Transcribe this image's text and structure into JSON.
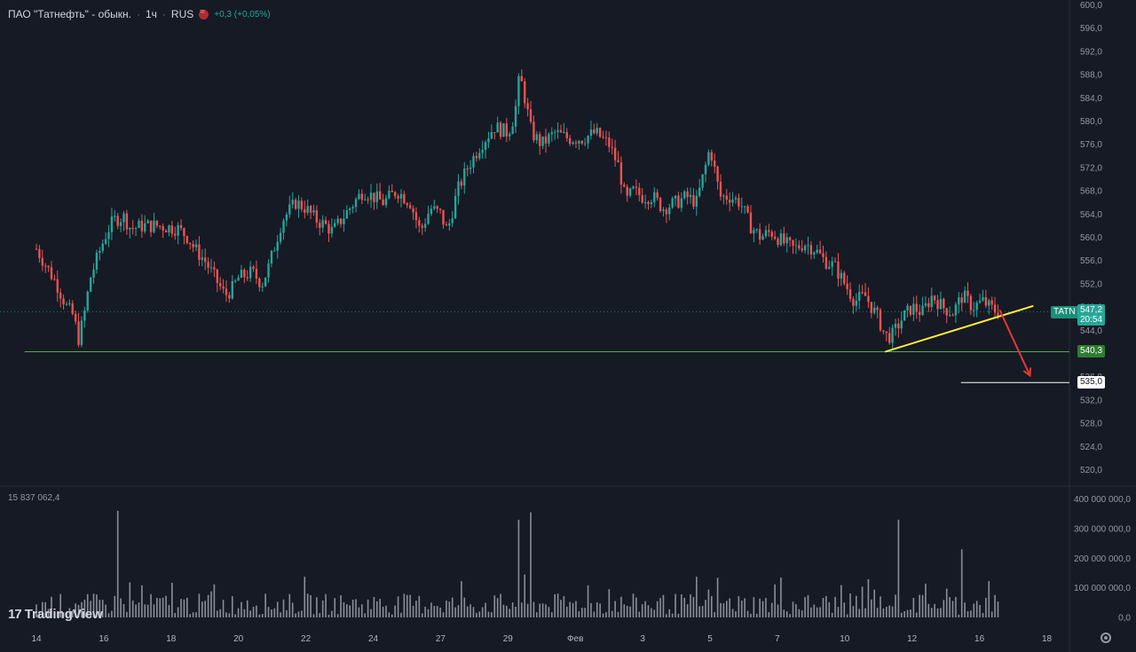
{
  "header": {
    "title": "ПАО \"Татнефть\" - обыкн.",
    "interval": "1ч",
    "exchange": "RUS",
    "change": "+0,3 (+0,05%)"
  },
  "volume_label": "15 837 062,4",
  "logo_text": "TradingView",
  "colors": {
    "background": "#161a25",
    "up": "#26a69a",
    "down": "#ef5350",
    "volume_bar": "#b2b5be",
    "support_line": "#4caf50",
    "trend_line": "#ffeb3b",
    "arrow": "#e53935",
    "target_line": "#ffffff"
  },
  "tags": {
    "ticker": "TATN",
    "last_price": "547,2",
    "countdown": "20:54",
    "support": "540,3",
    "target": "535,0"
  },
  "chart_data": [
    {
      "type": "candlestick",
      "price_axis": {
        "ylim": [
          516,
          600
        ],
        "ticks": [
          "600,0",
          "596,0",
          "592,0",
          "588,0",
          "584,0",
          "580,0",
          "576,0",
          "572,0",
          "568,0",
          "564,0",
          "560,0",
          "556,0",
          "552,0",
          "548,0",
          "544,0",
          "536,0",
          "532,0",
          "528,0",
          "524,0",
          "520,0"
        ],
        "tick_values": [
          600,
          596,
          592,
          588,
          584,
          580,
          576,
          572,
          568,
          564,
          560,
          556,
          552,
          548,
          544,
          536,
          532,
          528,
          524,
          520
        ]
      },
      "x_ticks": [
        "14",
        "16",
        "18",
        "20",
        "22",
        "24",
        "27",
        "29",
        "Фев",
        "3",
        "5",
        "7",
        "10",
        "12",
        "16",
        "18"
      ],
      "x_tick_index": [
        0,
        2,
        4,
        6,
        8,
        10,
        12,
        14,
        16,
        18,
        20,
        22,
        24,
        26,
        28,
        30
      ],
      "price_path": [
        [
          0,
          558
        ],
        [
          0.3,
          555
        ],
        [
          0.6,
          552
        ],
        [
          0.9,
          548
        ],
        [
          1.1,
          546.5
        ],
        [
          1.25,
          542.5
        ],
        [
          1.4,
          546
        ],
        [
          1.6,
          553
        ],
        [
          1.9,
          558
        ],
        [
          2.1,
          561
        ],
        [
          2.3,
          563
        ],
        [
          2.6,
          563.5
        ],
        [
          2.8,
          561.5
        ],
        [
          3.2,
          562
        ],
        [
          3.6,
          562
        ],
        [
          4.2,
          561.5
        ],
        [
          4.5,
          560
        ],
        [
          4.7,
          558
        ],
        [
          5.0,
          556
        ],
        [
          5.3,
          553
        ],
        [
          5.6,
          550
        ],
        [
          5.8,
          551
        ],
        [
          6.0,
          553
        ],
        [
          6.4,
          554
        ],
        [
          6.7,
          552
        ],
        [
          6.9,
          555
        ],
        [
          7.3,
          563
        ],
        [
          7.7,
          566
        ],
        [
          8.0,
          565
        ],
        [
          8.3,
          563
        ],
        [
          8.6,
          562
        ],
        [
          8.8,
          561
        ],
        [
          9.3,
          565
        ],
        [
          9.7,
          568
        ],
        [
          10.0,
          567
        ],
        [
          10.3,
          566
        ],
        [
          10.7,
          568
        ],
        [
          11.1,
          566
        ],
        [
          11.4,
          561
        ],
        [
          11.7,
          565
        ],
        [
          12.0,
          564
        ],
        [
          12.2,
          561
        ],
        [
          12.5,
          568
        ],
        [
          12.8,
          572
        ],
        [
          13.2,
          576
        ],
        [
          13.6,
          579
        ],
        [
          14.0,
          578
        ],
        [
          14.2,
          581
        ],
        [
          14.35,
          588
        ],
        [
          14.5,
          584
        ],
        [
          14.7,
          578
        ],
        [
          15.0,
          576
        ],
        [
          15.4,
          578
        ],
        [
          15.8,
          577
        ],
        [
          16.2,
          577
        ],
        [
          16.6,
          578
        ],
        [
          17.0,
          576
        ],
        [
          17.3,
          572
        ],
        [
          17.5,
          566
        ],
        [
          17.7,
          568
        ],
        [
          18.0,
          567
        ],
        [
          18.3,
          567
        ],
        [
          18.6,
          565
        ],
        [
          19.0,
          566
        ],
        [
          19.3,
          567
        ],
        [
          19.6,
          566
        ],
        [
          19.9,
          573
        ],
        [
          20.0,
          575.5
        ],
        [
          20.3,
          567
        ],
        [
          20.6,
          567
        ],
        [
          20.9,
          566
        ],
        [
          21.2,
          562
        ],
        [
          21.5,
          560
        ],
        [
          21.8,
          561
        ],
        [
          22.2,
          559
        ],
        [
          22.5,
          558
        ],
        [
          22.8,
          559
        ],
        [
          23.1,
          558
        ],
        [
          23.4,
          556
        ],
        [
          23.7,
          555
        ],
        [
          24.0,
          552
        ],
        [
          24.3,
          549
        ],
        [
          24.6,
          550
        ],
        [
          25.0,
          546
        ],
        [
          25.2,
          543
        ],
        [
          25.4,
          543
        ],
        [
          25.7,
          546
        ],
        [
          26.0,
          548
        ],
        [
          26.3,
          547
        ],
        [
          26.6,
          550
        ],
        [
          26.9,
          548
        ],
        [
          27.2,
          547
        ],
        [
          27.5,
          550
        ],
        [
          27.8,
          548
        ],
        [
          28.1,
          549
        ],
        [
          28.3,
          548
        ],
        [
          28.5,
          547.2
        ]
      ],
      "last_price": 547.2,
      "horizontal_lines": [
        {
          "price": 547.2,
          "style": "dotted"
        },
        {
          "price": 540.3,
          "style": "solid"
        },
        {
          "price": 535.0,
          "style": "solid"
        }
      ],
      "trendline": {
        "from": [
          25.2,
          540.3
        ],
        "to": [
          29.6,
          548.2
        ]
      },
      "projection_arrow": {
        "from": [
          28.6,
          547.5
        ],
        "to": [
          29.5,
          536.2
        ]
      }
    },
    {
      "type": "bar",
      "series": "volume",
      "ylim": [
        0,
        400000000
      ],
      "ticks": [
        "400 000 000,0",
        "300 000 000,0",
        "200 000 000,0",
        "100 000 000,0",
        "0,0"
      ],
      "tick_values": [
        400000000,
        300000000,
        200000000,
        100000000,
        0
      ],
      "spikes": [
        {
          "x": 2.45,
          "value": 360000000
        },
        {
          "x": 14.35,
          "value": 330000000
        },
        {
          "x": 14.7,
          "value": 355000000
        },
        {
          "x": 25.6,
          "value": 330000000
        },
        {
          "x": 27.5,
          "value": 230000000
        }
      ],
      "typical_level": 60000000
    }
  ]
}
